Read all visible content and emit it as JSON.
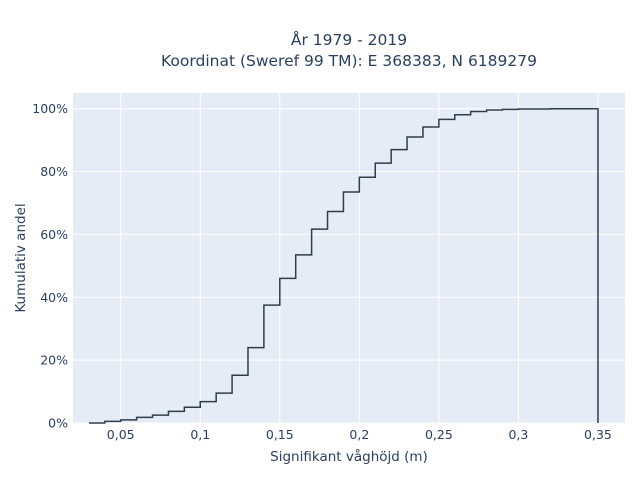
{
  "chart_data": {
    "type": "line",
    "line_shape": "step-post",
    "title_line_1": "År 1979 - 2019",
    "title_line_2": "Koordinat (Sweref 99 TM): E 368383, N 6189279",
    "xlabel": "Signifikant våghöjd (m)",
    "ylabel": "Kumulativ andel",
    "xlim": [
      0.02,
      0.367
    ],
    "ylim": [
      0,
      1.05
    ],
    "x_ticks": [
      {
        "value": 0.05,
        "label": "0,05"
      },
      {
        "value": 0.1,
        "label": "0,1"
      },
      {
        "value": 0.15,
        "label": "0,15"
      },
      {
        "value": 0.2,
        "label": "0,2"
      },
      {
        "value": 0.25,
        "label": "0,25"
      },
      {
        "value": 0.3,
        "label": "0,3"
      },
      {
        "value": 0.35,
        "label": "0,35"
      }
    ],
    "y_ticks": [
      {
        "value": 0,
        "label": "0%"
      },
      {
        "value": 0.2,
        "label": "20%"
      },
      {
        "value": 0.4,
        "label": "40%"
      },
      {
        "value": 0.6,
        "label": "60%"
      },
      {
        "value": 0.8,
        "label": "80%"
      },
      {
        "value": 1.0,
        "label": "100%"
      }
    ],
    "grid": true,
    "background_color": "#e5ecf6",
    "line_color": "#2f3e4e",
    "x": [
      0.03,
      0.04,
      0.05,
      0.06,
      0.07,
      0.08,
      0.09,
      0.1,
      0.11,
      0.12,
      0.13,
      0.14,
      0.15,
      0.16,
      0.17,
      0.18,
      0.19,
      0.2,
      0.21,
      0.22,
      0.23,
      0.24,
      0.25,
      0.26,
      0.27,
      0.28,
      0.29,
      0.3,
      0.31,
      0.32,
      0.33,
      0.34,
      0.35,
      0.35
    ],
    "y": [
      0.0,
      0.005,
      0.01,
      0.018,
      0.025,
      0.037,
      0.05,
      0.068,
      0.095,
      0.152,
      0.24,
      0.375,
      0.46,
      0.535,
      0.617,
      0.673,
      0.735,
      0.782,
      0.827,
      0.87,
      0.91,
      0.942,
      0.966,
      0.981,
      0.991,
      0.996,
      0.998,
      0.999,
      0.999,
      1.0,
      1.0,
      1.0,
      1.0,
      0.0
    ]
  }
}
